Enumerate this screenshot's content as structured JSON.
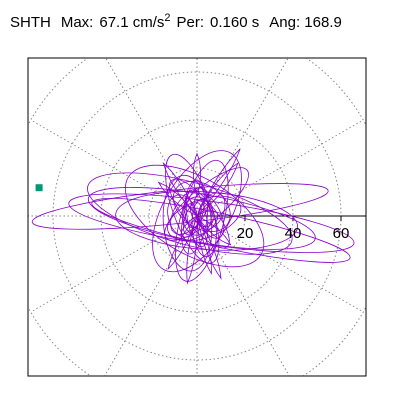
{
  "header": {
    "station": "SHTH",
    "max_label": "Max:",
    "max_value": "67.1",
    "max_unit": "cm/s",
    "max_unit_exp": "2",
    "per_label": "Per:",
    "per_value": "0.160 s",
    "ang_label": "Ang:",
    "ang_value": "168.9"
  },
  "chart_data": {
    "type": "polar-particle-motion",
    "title": "SHTH Max: 67.1 cm/s2 Per: 0.160 s Ang: 168.9",
    "units": "cm/s2",
    "max_amplitude": 67.1,
    "period_s": 0.16,
    "angle_deg": 168.9,
    "radial_ticks": [
      20,
      40,
      60
    ],
    "radial_circles": [
      20,
      40,
      60,
      80
    ],
    "radial_spoke_step_deg": 30,
    "x_range": [
      -72,
      72
    ],
    "y_range": [
      -72,
      72
    ],
    "grid": true,
    "trace_color": "#8800cc",
    "max_marker_color": "#009977",
    "max_marker_position": [
      -66,
      12
    ],
    "trace_ellipses": [
      {
        "cx": -7,
        "cy": 4,
        "a": 62,
        "b": 7,
        "rot": -174
      },
      {
        "cx": 6,
        "cy": -3,
        "a": 60,
        "b": 9,
        "rot": -8
      },
      {
        "cx": 2,
        "cy": -1,
        "a": 48,
        "b": 10,
        "rot": 170
      },
      {
        "cx": 10,
        "cy": -6,
        "a": 55,
        "b": 7,
        "rot": -12
      },
      {
        "cx": -3,
        "cy": 1,
        "a": 44,
        "b": 13,
        "rot": 165
      },
      {
        "cx": 4,
        "cy": -2,
        "a": 38,
        "b": 12,
        "rot": 176
      },
      {
        "cx": -1,
        "cy": 0,
        "a": 32,
        "b": 16,
        "rot": 150
      },
      {
        "cx": 0,
        "cy": 2,
        "a": 28,
        "b": 14,
        "rot": 60
      },
      {
        "cx": 2,
        "cy": -2,
        "a": 26,
        "b": 9,
        "rot": 75
      },
      {
        "cx": -2,
        "cy": 3,
        "a": 24,
        "b": 8,
        "rot": 110
      },
      {
        "cx": 4,
        "cy": 5,
        "a": 22,
        "b": 7,
        "rot": 40
      },
      {
        "cx": -4,
        "cy": -3,
        "a": 20,
        "b": 10,
        "rot": 95
      },
      {
        "cx": 1,
        "cy": 1,
        "a": 18,
        "b": 6,
        "rot": 130
      },
      {
        "cx": 3,
        "cy": -1,
        "a": 16,
        "b": 8,
        "rot": 20
      },
      {
        "cx": -1,
        "cy": -2,
        "a": 14,
        "b": 5,
        "rot": 80
      },
      {
        "cx": 2,
        "cy": 4,
        "a": 13,
        "b": 9,
        "rot": 145
      },
      {
        "cx": 0,
        "cy": -1,
        "a": 12,
        "b": 4,
        "rot": 100
      },
      {
        "cx": -3,
        "cy": 2,
        "a": 11,
        "b": 6,
        "rot": 55
      },
      {
        "cx": 5,
        "cy": 0,
        "a": 10,
        "b": 5,
        "rot": 115
      },
      {
        "cx": 1,
        "cy": -4,
        "a": 9,
        "b": 4,
        "rot": 35
      },
      {
        "cx": 0,
        "cy": 0,
        "a": 8,
        "b": 6,
        "rot": 90
      },
      {
        "cx": -2,
        "cy": -1,
        "a": 7,
        "b": 3,
        "rot": 70
      },
      {
        "cx": 2,
        "cy": 1,
        "a": 6,
        "b": 4,
        "rot": 125
      },
      {
        "cx": -1,
        "cy": 5,
        "a": 10,
        "b": 4,
        "rot": 85
      },
      {
        "cx": 3,
        "cy": -5,
        "a": 12,
        "b": 5,
        "rot": 95
      },
      {
        "cx": -6,
        "cy": 0,
        "a": 9,
        "b": 6,
        "rot": 105
      },
      {
        "cx": 6,
        "cy": 2,
        "a": 8,
        "b": 5,
        "rot": 65
      }
    ],
    "trace_lobes": [
      {
        "x1": 0,
        "y1": 8,
        "x2": 0,
        "y2": 26,
        "w": 3
      },
      {
        "x1": 0,
        "y1": 0,
        "x2": 18,
        "y2": 28,
        "w": 3
      },
      {
        "x1": 0,
        "y1": 0,
        "x2": 17,
        "y2": 22,
        "w": 4
      },
      {
        "x1": 0,
        "y1": 0,
        "x2": -14,
        "y2": 22,
        "w": 3
      },
      {
        "x1": 0,
        "y1": 0,
        "x2": -4,
        "y2": -28,
        "w": 3
      },
      {
        "x1": 0,
        "y1": 0,
        "x2": 6,
        "y2": -24,
        "w": 3
      },
      {
        "x1": 0,
        "y1": 0,
        "x2": -12,
        "y2": -22,
        "w": 3
      },
      {
        "x1": 0,
        "y1": 0,
        "x2": 10,
        "y2": -26,
        "w": 3
      },
      {
        "x1": 0,
        "y1": 0,
        "x2": -16,
        "y2": 14,
        "w": 3
      },
      {
        "x1": 0,
        "y1": 0,
        "x2": 14,
        "y2": -12,
        "w": 3
      }
    ]
  }
}
